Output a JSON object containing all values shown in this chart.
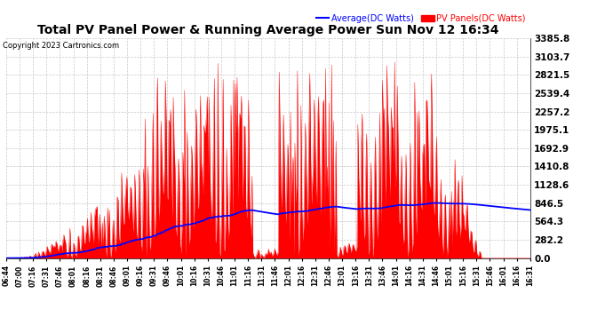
{
  "title": "Total PV Panel Power & Running Average Power Sun Nov 12 16:34",
  "copyright": "Copyright 2023 Cartronics.com",
  "legend_avg": "Average(DC Watts)",
  "legend_pv": "PV Panels(DC Watts)",
  "yticks": [
    0.0,
    282.2,
    564.3,
    846.5,
    1128.6,
    1410.8,
    1692.9,
    1975.1,
    2257.2,
    2539.4,
    2821.5,
    3103.7,
    3385.8
  ],
  "ymax": 3385.8,
  "ymin": 0.0,
  "background_color": "#ffffff",
  "plot_bg_color": "#ffffff",
  "grid_color": "#bbbbbb",
  "fill_color": "#ff0000",
  "avg_color": "#0000ff",
  "title_color": "#000000",
  "copyright_color": "#000000",
  "xtick_labels": [
    "06:44",
    "07:00",
    "07:16",
    "07:31",
    "07:46",
    "08:01",
    "08:16",
    "08:31",
    "08:46",
    "09:01",
    "09:16",
    "09:31",
    "09:46",
    "10:01",
    "10:16",
    "10:31",
    "10:46",
    "11:01",
    "11:16",
    "11:31",
    "11:46",
    "12:01",
    "12:16",
    "12:31",
    "12:46",
    "13:01",
    "13:16",
    "13:31",
    "13:46",
    "14:01",
    "14:16",
    "14:31",
    "14:46",
    "15:01",
    "15:16",
    "15:31",
    "15:46",
    "16:01",
    "16:16",
    "16:31"
  ]
}
